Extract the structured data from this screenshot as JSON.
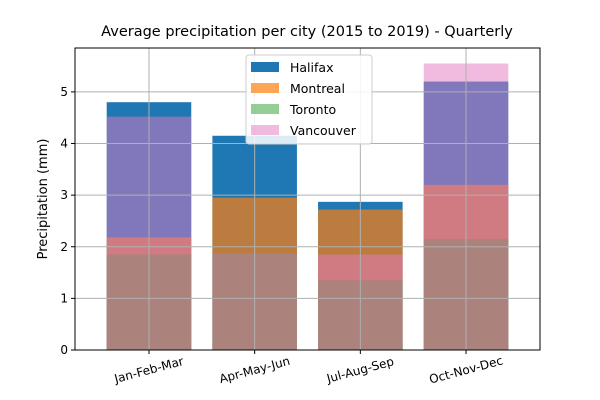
{
  "chart_data": {
    "type": "bar",
    "title": "Average precipitation per city (2015 to 2019) - Quarterly",
    "xlabel": "",
    "ylabel": "Precipitation (mm)",
    "categories": [
      "Jan-Feb-Mar",
      "Apr-May-Jun",
      "Jul-Aug-Sep",
      "Oct-Nov-Dec"
    ],
    "yticks": [
      "0",
      "1",
      "2",
      "3",
      "4",
      "5"
    ],
    "ylim": [
      0,
      5.85
    ],
    "grid": true,
    "legend_position": "top-center",
    "overlay": "bars drawn on top of each other with partial transparency",
    "series": [
      {
        "name": "Halifax",
        "values": [
          4.8,
          4.15,
          2.87,
          5.2
        ],
        "color": "#1f77b4",
        "opacity": 1.0
      },
      {
        "name": "Montreal",
        "values": [
          2.18,
          2.95,
          2.72,
          3.2
        ],
        "color": "#ff7f0e",
        "opacity": 0.7
      },
      {
        "name": "Toronto",
        "values": [
          1.85,
          1.87,
          1.35,
          2.15
        ],
        "color": "#2ca02c",
        "opacity": 0.5
      },
      {
        "name": "Vancouver",
        "values": [
          4.52,
          1.87,
          1.85,
          5.55
        ],
        "color": "#e377c2",
        "opacity": 0.5
      }
    ]
  }
}
